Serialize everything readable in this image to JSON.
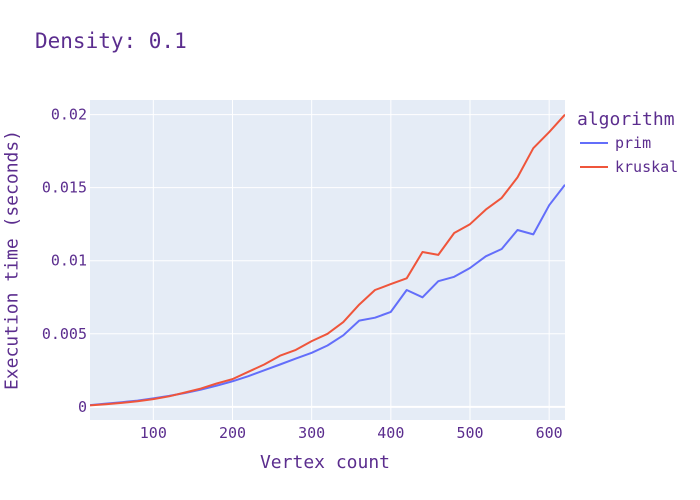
{
  "chart_data": {
    "type": "line",
    "title": "Density: 0.1",
    "xlabel": "Vertex count",
    "ylabel": "Execution time (seconds)",
    "xlim": [
      20,
      620
    ],
    "ylim": [
      -0.0009,
      0.021
    ],
    "x_ticks": [
      100,
      200,
      300,
      400,
      500,
      600
    ],
    "x_tick_labels": [
      "100",
      "200",
      "300",
      "400",
      "500",
      "600"
    ],
    "y_ticks": [
      0,
      0.005,
      0.01,
      0.015,
      0.02
    ],
    "y_tick_labels": [
      "0",
      "0.005",
      "0.01",
      "0.015",
      "0.02"
    ],
    "grid": true,
    "legend_title": "algorithm",
    "legend_position": "right",
    "x": [
      20,
      40,
      60,
      80,
      100,
      120,
      140,
      160,
      180,
      200,
      220,
      240,
      260,
      280,
      300,
      320,
      340,
      360,
      380,
      400,
      420,
      440,
      460,
      480,
      500,
      520,
      540,
      560,
      580,
      600,
      620
    ],
    "series": [
      {
        "name": "prim",
        "color": "#636efa",
        "values": [
          0.00012,
          0.00022,
          0.00032,
          0.00043,
          0.00058,
          0.00075,
          0.00095,
          0.00118,
          0.00145,
          0.00175,
          0.0021,
          0.0025,
          0.0029,
          0.0033,
          0.0037,
          0.0042,
          0.0049,
          0.0059,
          0.0061,
          0.0065,
          0.008,
          0.0075,
          0.0086,
          0.0089,
          0.0095,
          0.0103,
          0.0108,
          0.0121,
          0.0118,
          0.0138,
          0.0152
        ]
      },
      {
        "name": "kruskal",
        "color": "#ef553b",
        "values": [
          0.0001,
          0.00018,
          0.00027,
          0.00038,
          0.00053,
          0.00072,
          0.00098,
          0.00125,
          0.0016,
          0.0019,
          0.0024,
          0.0029,
          0.0035,
          0.0039,
          0.0045,
          0.005,
          0.0058,
          0.007,
          0.008,
          0.0084,
          0.0088,
          0.0106,
          0.0104,
          0.0119,
          0.0125,
          0.0135,
          0.0143,
          0.0157,
          0.0177,
          0.0188,
          0.02
        ]
      }
    ]
  },
  "colors": {
    "plot_bg": "#e5ecf6",
    "grid": "#ffffff",
    "text": "#5b2d8e"
  }
}
